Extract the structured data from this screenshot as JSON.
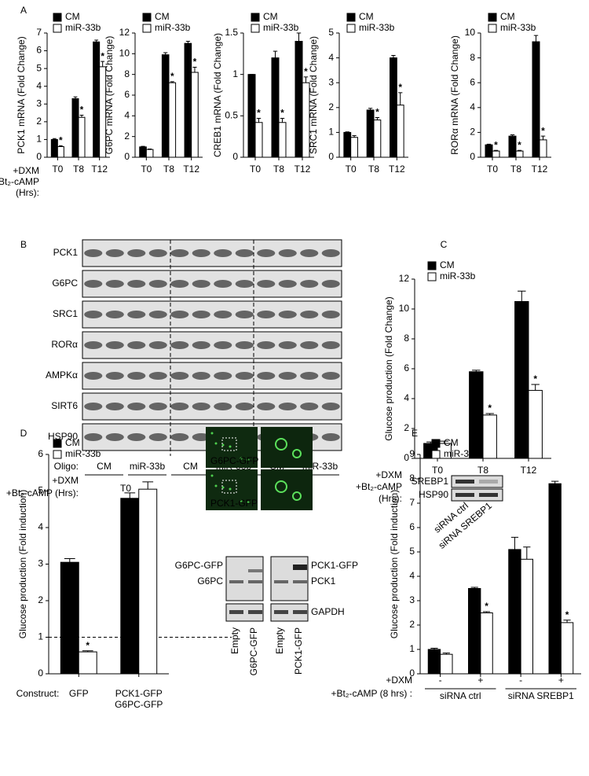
{
  "panels": [
    "A",
    "B",
    "C",
    "D",
    "E"
  ],
  "chart_data": [
    {
      "type": "bar",
      "ylabel": "PCK1 mRNA (Fold Change)",
      "categories": [
        "T0",
        "T8",
        "T12"
      ],
      "ylim": [
        0,
        7
      ],
      "yticks": [
        0,
        1,
        2,
        3,
        4,
        5,
        6,
        7
      ],
      "legend": "top-left",
      "sig_marker": "*",
      "row_labels": [
        "+DXM",
        "+Bt₂-cAMP",
        "(Hrs):"
      ],
      "series": [
        {
          "name": "CM",
          "color": "#000000",
          "values": [
            1,
            3.3,
            6.5
          ],
          "errors": [
            0.05,
            0.1,
            0.1
          ]
        },
        {
          "name": "miR-33b",
          "color": "#ffffff",
          "values": [
            0.6,
            2.25,
            5.1
          ],
          "errors": [
            0.05,
            0.12,
            0.3
          ],
          "significant": [
            true,
            true,
            true
          ]
        }
      ]
    },
    {
      "type": "bar",
      "ylabel": "G6PC mRNA (Fold Change)",
      "categories": [
        "T0",
        "T8",
        "T12"
      ],
      "ylim": [
        0,
        12
      ],
      "yticks": [
        0,
        2,
        4,
        6,
        8,
        10,
        12
      ],
      "legend": "top-left",
      "sig_marker": "*",
      "series": [
        {
          "name": "CM",
          "color": "#000000",
          "values": [
            1,
            9.9,
            11
          ],
          "errors": [
            0.05,
            0.2,
            0.2
          ]
        },
        {
          "name": "miR-33b",
          "color": "#ffffff",
          "values": [
            0.75,
            7.2,
            8.2
          ],
          "errors": [
            0.05,
            0.1,
            0.5
          ],
          "significant": [
            false,
            true,
            true
          ]
        }
      ]
    },
    {
      "type": "bar",
      "ylabel": "CREB1 mRNA (Fold Change)",
      "categories": [
        "T0",
        "T8",
        "T12"
      ],
      "ylim": [
        0,
        1.5
      ],
      "yticks": [
        0,
        0.5,
        1,
        1.5
      ],
      "legend": "top-left",
      "sig_marker": "*",
      "series": [
        {
          "name": "CM",
          "color": "#000000",
          "values": [
            1,
            1.2,
            1.4
          ],
          "errors": [
            0,
            0.08,
            0.1
          ]
        },
        {
          "name": "miR-33b",
          "color": "#ffffff",
          "values": [
            0.42,
            0.42,
            0.9
          ],
          "errors": [
            0.05,
            0.05,
            0.07
          ],
          "significant": [
            true,
            true,
            true
          ]
        }
      ]
    },
    {
      "type": "bar",
      "ylabel": "SRC1 mRNA (Fold Change)",
      "categories": [
        "T0",
        "T8",
        "T12"
      ],
      "ylim": [
        0,
        5
      ],
      "yticks": [
        0,
        1,
        2,
        3,
        4,
        5
      ],
      "legend": "top-left",
      "sig_marker": "*",
      "series": [
        {
          "name": "CM",
          "color": "#000000",
          "values": [
            1,
            1.9,
            4
          ],
          "errors": [
            0.02,
            0.07,
            0.1
          ]
        },
        {
          "name": "miR-33b",
          "color": "#ffffff",
          "values": [
            0.8,
            1.5,
            2.1
          ],
          "errors": [
            0.07,
            0.1,
            0.5
          ],
          "significant": [
            false,
            true,
            true
          ]
        }
      ]
    },
    {
      "type": "bar",
      "ylabel": "RORα mRNA (Fold Change)",
      "categories": [
        "T0",
        "T8",
        "T12"
      ],
      "ylim": [
        0,
        10
      ],
      "yticks": [
        0,
        2,
        4,
        6,
        8,
        10
      ],
      "legend": "top-left",
      "sig_marker": "*",
      "series": [
        {
          "name": "CM",
          "color": "#000000",
          "values": [
            1,
            1.7,
            9.3
          ],
          "errors": [
            0.05,
            0.1,
            0.5
          ]
        },
        {
          "name": "miR-33b",
          "color": "#ffffff",
          "values": [
            0.5,
            0.5,
            1.4
          ],
          "errors": [
            0.05,
            0.05,
            0.3
          ],
          "significant": [
            true,
            true,
            true
          ]
        }
      ]
    },
    {
      "type": "bar",
      "ylabel": "Glucose production (Fold Change)",
      "categories": [
        "T0",
        "T8",
        "T12"
      ],
      "ylim": [
        0,
        12
      ],
      "yticks": [
        0,
        2,
        4,
        6,
        8,
        10,
        12
      ],
      "legend": "top-left",
      "sig_marker": "*",
      "row_labels": [
        "+DXM",
        "+Bt₂-cAMP",
        "(Hrs):"
      ],
      "series": [
        {
          "name": "CM",
          "color": "#000000",
          "values": [
            1,
            5.8,
            10.5
          ],
          "errors": [
            0.1,
            0.1,
            0.7
          ]
        },
        {
          "name": "miR-33b",
          "color": "#ffffff",
          "values": [
            1,
            2.9,
            4.55
          ],
          "errors": [
            0.15,
            0.1,
            0.4
          ],
          "significant": [
            false,
            true,
            true
          ]
        }
      ]
    },
    {
      "type": "bar",
      "ylabel": "Glucose production (Fold induction)",
      "categories": [
        "GFP",
        [
          "PCK1-GFP",
          "G6PC-GFP"
        ]
      ],
      "ylim": [
        0,
        6
      ],
      "yticks": [
        0,
        1,
        2,
        3,
        4,
        5,
        6
      ],
      "legend": "top-left",
      "sig_marker": "*",
      "xlabel": "Construct:",
      "reference_line": 1,
      "series": [
        {
          "name": "CM",
          "color": "#000000",
          "values": [
            3.05,
            4.8
          ],
          "errors": [
            0.1,
            0.15
          ]
        },
        {
          "name": "miR-33b",
          "color": "#ffffff",
          "values": [
            0.6,
            5.05
          ],
          "errors": [
            0.03,
            0.2
          ],
          "significant": [
            true,
            false
          ]
        }
      ]
    },
    {
      "type": "bar",
      "ylabel": "Glucose production (Fold induction)",
      "categories": [
        "-",
        "+",
        "-",
        "+"
      ],
      "ylim": [
        0,
        9
      ],
      "yticks": [
        0,
        1,
        2,
        3,
        4,
        5,
        6,
        7,
        8,
        9
      ],
      "legend": "top-left",
      "sig_marker": "*",
      "row_labels": [
        "+DXM",
        "+Bt₂-cAMP (8 hrs) :"
      ],
      "groups": [
        "siRNA ctrl",
        "siRNA SREBP1"
      ],
      "series": [
        {
          "name": "CM",
          "color": "#000000",
          "values": [
            1,
            3.5,
            5.1,
            7.8
          ],
          "errors": [
            0.05,
            0.05,
            0.5,
            0.1
          ]
        },
        {
          "name": "miR-33b",
          "color": "#ffffff",
          "values": [
            0.8,
            2.5,
            4.7,
            2.1
          ],
          "errors": [
            0.05,
            0.05,
            0.5,
            0.1
          ],
          "significant": [
            false,
            true,
            false,
            true
          ]
        }
      ]
    }
  ],
  "blot": {
    "rows": [
      "PCK1",
      "G6PC",
      "SRC1",
      "RORα",
      "AMPKα",
      "SIRT6",
      "HSP90"
    ],
    "oligo_label": "Oligo:",
    "oligos": [
      "CM",
      "miR-33b",
      "CM",
      "miR-33b",
      "CM",
      "miR-33b"
    ],
    "times": [
      "T0",
      "T8",
      "T12"
    ],
    "row_labels": [
      "+DXM",
      "+Bt₂-cAMP (Hrs):"
    ]
  },
  "panel_d_images": {
    "micrographs": [
      "G6PC-GFP",
      "PCK1-GFP"
    ],
    "left_blot": [
      "G6PC-GFP",
      "G6PC"
    ],
    "right_blot": [
      "PCK1-GFP",
      "PCK1"
    ],
    "loading": "GAPDH",
    "lanes": [
      "Empty",
      "G6PC-GFP",
      "Empty",
      "PCK1-GFP"
    ]
  },
  "panel_e_inset": {
    "rows": [
      "SREBP1",
      "HSP90"
    ],
    "lanes": [
      "siRNA ctrl",
      "siRNA SREBP1"
    ]
  }
}
